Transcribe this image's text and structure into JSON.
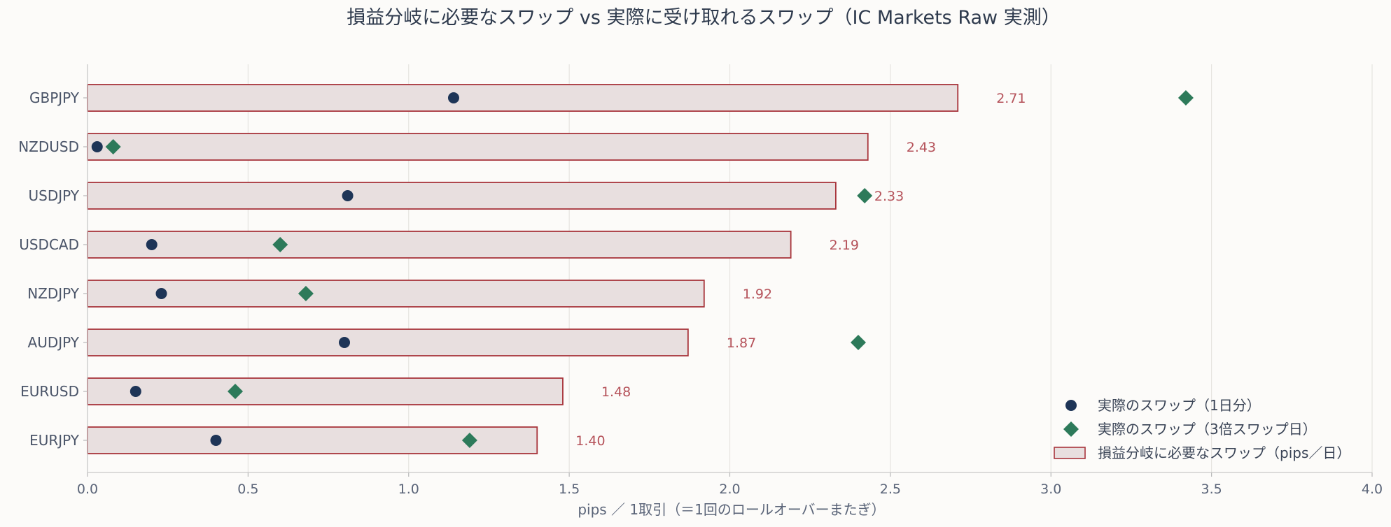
{
  "chart_data": {
    "type": "bar",
    "orientation": "horizontal",
    "title": "損益分岐に必要なスワップ vs 実際に受け取れるスワップ（IC Markets Raw 実測）",
    "xlabel": "pips ／ 1取引（＝1回のロールオーバーまたぎ）",
    "xlim": [
      0,
      4.0
    ],
    "xticks": [
      "0.0",
      "0.5",
      "1.0",
      "1.5",
      "2.0",
      "2.5",
      "3.0",
      "3.5",
      "4.0"
    ],
    "grid": true,
    "legend_position": "bottom-right",
    "categories": [
      "GBPJPY",
      "NZDUSD",
      "USDJPY",
      "USDCAD",
      "NZDJPY",
      "AUDJPY",
      "EURUSD",
      "EURJPY"
    ],
    "series": [
      {
        "name": "損益分岐に必要なスワップ（pips／日）",
        "kind": "bar",
        "values": [
          2.71,
          2.43,
          2.33,
          2.19,
          1.92,
          1.87,
          1.48,
          1.4
        ],
        "value_labels": [
          "2.71",
          "2.43",
          "2.33",
          "2.19",
          "1.92",
          "1.87",
          "1.48",
          "1.40"
        ],
        "color": "#e8dfdf",
        "edge_color": "#a8353c"
      },
      {
        "name": "実際のスワップ（1日分）",
        "kind": "point",
        "marker": "circle",
        "values": [
          1.14,
          0.03,
          0.81,
          0.2,
          0.23,
          0.8,
          0.15,
          0.4
        ],
        "color": "#1e3557"
      },
      {
        "name": "実際のスワップ（3倍スワップ日）",
        "kind": "point",
        "marker": "diamond",
        "values": [
          3.42,
          0.08,
          2.42,
          0.6,
          0.68,
          2.4,
          0.46,
          1.19
        ],
        "color": "#2d7a5a"
      }
    ]
  }
}
